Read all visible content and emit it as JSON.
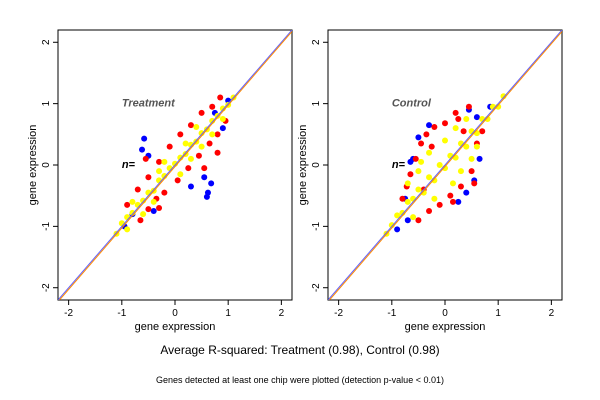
{
  "figure": {
    "caption": "Average R-squared: Treatment (0.98), Control (0.98)",
    "footnote": "Genes detected at least one chip were plotted (detection p-value < 0.01)"
  },
  "colors": {
    "yellow": "#ffff00",
    "red": "#ff0000",
    "blue": "#0000ff",
    "diagonal_a": "#ff8c00",
    "diagonal_b": "#6060ff"
  },
  "chart_data": [
    {
      "type": "scatter",
      "title": "Treatment",
      "annotation": "n=",
      "xlabel": "gene expression",
      "ylabel": "gene expression",
      "xlim": [
        -2.2,
        2.2
      ],
      "ylim": [
        -2.2,
        2.2
      ],
      "xticks": [
        -2,
        -1,
        0,
        1,
        2
      ],
      "yticks": [
        -2,
        -1,
        0,
        1,
        2
      ],
      "reference_line": "y = x",
      "series": [
        {
          "color": "yellow",
          "points": [
            [
              -1.1,
              -1.12
            ],
            [
              -1.0,
              -0.95
            ],
            [
              -0.9,
              -0.85
            ],
            [
              -0.8,
              -0.78
            ],
            [
              -0.7,
              -0.65
            ],
            [
              -0.6,
              -0.58
            ],
            [
              -0.5,
              -0.45
            ],
            [
              -0.4,
              -0.42
            ],
            [
              -0.3,
              -0.25
            ],
            [
              -0.2,
              -0.18
            ],
            [
              -0.1,
              -0.05
            ],
            [
              0.0,
              0.02
            ],
            [
              0.1,
              0.12
            ],
            [
              0.2,
              0.18
            ],
            [
              0.3,
              0.33
            ],
            [
              0.4,
              0.38
            ],
            [
              0.5,
              0.52
            ],
            [
              0.6,
              0.58
            ],
            [
              0.7,
              0.72
            ],
            [
              0.8,
              0.8
            ],
            [
              0.9,
              0.92
            ],
            [
              1.0,
              0.98
            ],
            [
              1.1,
              1.1
            ],
            [
              0.2,
              0.35
            ],
            [
              -0.3,
              -0.1
            ],
            [
              0.5,
              0.3
            ],
            [
              -0.6,
              -0.8
            ],
            [
              0.1,
              -0.15
            ],
            [
              0.4,
              0.62
            ],
            [
              -0.2,
              0.05
            ],
            [
              0.7,
              0.5
            ],
            [
              -0.8,
              -0.6
            ],
            [
              0.3,
              0.1
            ],
            [
              -0.4,
              -0.6
            ],
            [
              0.9,
              0.75
            ],
            [
              -0.9,
              -1.05
            ]
          ]
        },
        {
          "color": "red",
          "points": [
            [
              -0.65,
              -0.9
            ],
            [
              -0.5,
              -0.72
            ],
            [
              -0.35,
              -0.55
            ],
            [
              -0.2,
              -0.45
            ],
            [
              0.05,
              -0.25
            ],
            [
              0.25,
              -0.05
            ],
            [
              0.45,
              0.15
            ],
            [
              0.65,
              0.35
            ],
            [
              0.8,
              0.5
            ],
            [
              0.95,
              0.72
            ],
            [
              -0.9,
              -0.65
            ],
            [
              -0.7,
              -0.4
            ],
            [
              -0.5,
              -0.2
            ],
            [
              -0.3,
              0.05
            ],
            [
              -0.1,
              0.3
            ],
            [
              0.1,
              0.5
            ],
            [
              0.3,
              0.65
            ],
            [
              0.5,
              0.85
            ],
            [
              0.7,
              0.95
            ],
            [
              0.85,
              1.1
            ],
            [
              0.55,
              -0.05
            ],
            [
              -0.55,
              0.1
            ],
            [
              0.8,
              0.2
            ],
            [
              -0.3,
              -0.7
            ]
          ]
        },
        {
          "color": "blue",
          "points": [
            [
              -0.58,
              0.43
            ],
            [
              -0.62,
              0.25
            ],
            [
              -0.5,
              0.15
            ],
            [
              0.55,
              -0.2
            ],
            [
              0.62,
              -0.45
            ],
            [
              0.6,
              -0.52
            ],
            [
              0.68,
              -0.3
            ],
            [
              -0.8,
              -0.8
            ],
            [
              0.9,
              0.6
            ],
            [
              -0.4,
              -0.75
            ],
            [
              1.0,
              1.05
            ],
            [
              0.75,
              0.85
            ],
            [
              -0.95,
              -1.0
            ],
            [
              0.3,
              -0.35
            ]
          ]
        }
      ]
    },
    {
      "type": "scatter",
      "title": "Control",
      "annotation": "n=",
      "xlabel": "gene expression",
      "ylabel": "gene expression",
      "xlim": [
        -2.2,
        2.2
      ],
      "ylim": [
        -2.2,
        2.2
      ],
      "xticks": [
        -2,
        -1,
        0,
        1,
        2
      ],
      "yticks": [
        -2,
        -1,
        0,
        1,
        2
      ],
      "reference_line": "y = x",
      "series": [
        {
          "color": "yellow",
          "points": [
            [
              -1.1,
              -1.12
            ],
            [
              -1.0,
              -0.98
            ],
            [
              -0.9,
              -0.82
            ],
            [
              -0.8,
              -0.78
            ],
            [
              -0.7,
              -0.6
            ],
            [
              -0.6,
              -0.55
            ],
            [
              -0.5,
              -0.4
            ],
            [
              -0.4,
              -0.45
            ],
            [
              -0.3,
              -0.2
            ],
            [
              -0.2,
              -0.25
            ],
            [
              -0.1,
              0.0
            ],
            [
              0.0,
              -0.05
            ],
            [
              0.1,
              0.15
            ],
            [
              0.2,
              0.12
            ],
            [
              0.3,
              0.35
            ],
            [
              0.4,
              0.3
            ],
            [
              0.5,
              0.55
            ],
            [
              0.6,
              0.52
            ],
            [
              0.7,
              0.75
            ],
            [
              0.8,
              0.75
            ],
            [
              0.9,
              0.95
            ],
            [
              1.0,
              0.95
            ],
            [
              1.1,
              1.12
            ],
            [
              -0.5,
              -0.1
            ],
            [
              -0.3,
              0.2
            ],
            [
              0.0,
              0.4
            ],
            [
              0.3,
              -0.1
            ],
            [
              0.5,
              0.1
            ],
            [
              -0.7,
              -0.3
            ],
            [
              0.2,
              0.6
            ],
            [
              -0.2,
              -0.55
            ],
            [
              0.6,
              0.3
            ],
            [
              -0.6,
              -0.85
            ],
            [
              0.4,
              0.75
            ],
            [
              -0.45,
              0.05
            ],
            [
              0.15,
              -0.3
            ]
          ]
        },
        {
          "color": "red",
          "points": [
            [
              -0.72,
              -0.35
            ],
            [
              -0.55,
              0.1
            ],
            [
              -0.45,
              0.35
            ],
            [
              -0.35,
              0.5
            ],
            [
              -0.2,
              0.62
            ],
            [
              0.0,
              0.68
            ],
            [
              0.2,
              0.85
            ],
            [
              0.45,
              0.95
            ],
            [
              0.6,
              0.35
            ],
            [
              0.5,
              -0.1
            ],
            [
              0.3,
              -0.35
            ],
            [
              0.1,
              -0.5
            ],
            [
              -0.1,
              -0.65
            ],
            [
              -0.3,
              -0.75
            ],
            [
              -0.5,
              -0.9
            ],
            [
              -0.8,
              -0.55
            ],
            [
              -0.65,
              -0.15
            ],
            [
              0.55,
              -0.3
            ],
            [
              0.7,
              0.55
            ],
            [
              0.35,
              0.55
            ],
            [
              -0.25,
              0.3
            ],
            [
              0.15,
              -0.6
            ],
            [
              -0.4,
              -0.4
            ],
            [
              0.25,
              0.75
            ]
          ]
        },
        {
          "color": "blue",
          "points": [
            [
              -0.6,
              0.1
            ],
            [
              -0.75,
              -0.55
            ],
            [
              -0.5,
              0.45
            ],
            [
              -0.3,
              0.65
            ],
            [
              0.45,
              0.9
            ],
            [
              0.6,
              0.78
            ],
            [
              0.55,
              -0.25
            ],
            [
              0.25,
              -0.6
            ],
            [
              -0.7,
              -0.9
            ],
            [
              -0.9,
              -1.05
            ],
            [
              0.85,
              0.95
            ],
            [
              0.4,
              -0.45
            ],
            [
              0.65,
              0.1
            ],
            [
              -0.65,
              0.05
            ]
          ]
        }
      ]
    }
  ]
}
